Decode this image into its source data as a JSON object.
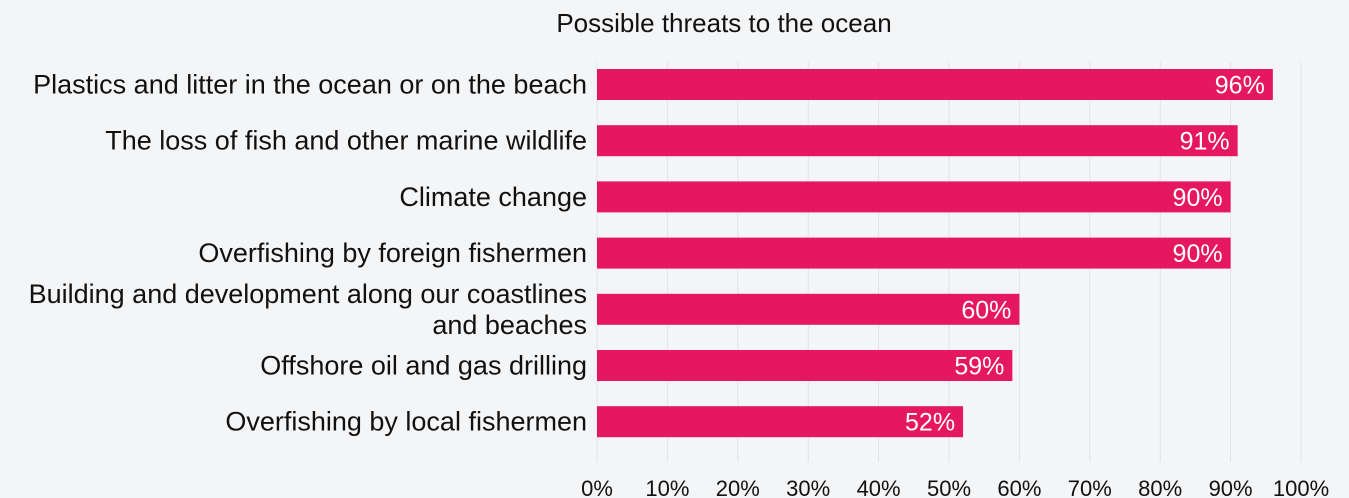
{
  "chart_data": {
    "type": "bar",
    "orientation": "horizontal",
    "title": "Possible threats to the ocean",
    "categories": [
      [
        "Plastics and litter in the ocean or on the beach"
      ],
      [
        "The loss of fish and other marine wildlife"
      ],
      [
        "Climate change"
      ],
      [
        "Overfishing by foreign fishermen"
      ],
      [
        "Building and development along our coastlines",
        "and beaches"
      ],
      [
        "Offshore oil and gas drilling"
      ],
      [
        "Overfishing by local fishermen"
      ]
    ],
    "values": [
      96,
      91,
      90,
      90,
      60,
      59,
      52
    ],
    "data_labels": [
      "96%",
      "91%",
      "90%",
      "90%",
      "60%",
      "59%",
      "52%"
    ],
    "xlim": [
      0,
      100
    ],
    "x_ticks": [
      0,
      10,
      20,
      30,
      40,
      50,
      60,
      70,
      80,
      90,
      100
    ],
    "x_tick_labels": [
      "0%",
      "10%",
      "20%",
      "30%",
      "40%",
      "50%",
      "60%",
      "70%",
      "80%",
      "90%",
      "100%"
    ],
    "grid": true,
    "legend": "none",
    "colors": {
      "bar": "#e5175f",
      "background": "#f4f5f7",
      "gridline": "#e2e3e6"
    }
  }
}
